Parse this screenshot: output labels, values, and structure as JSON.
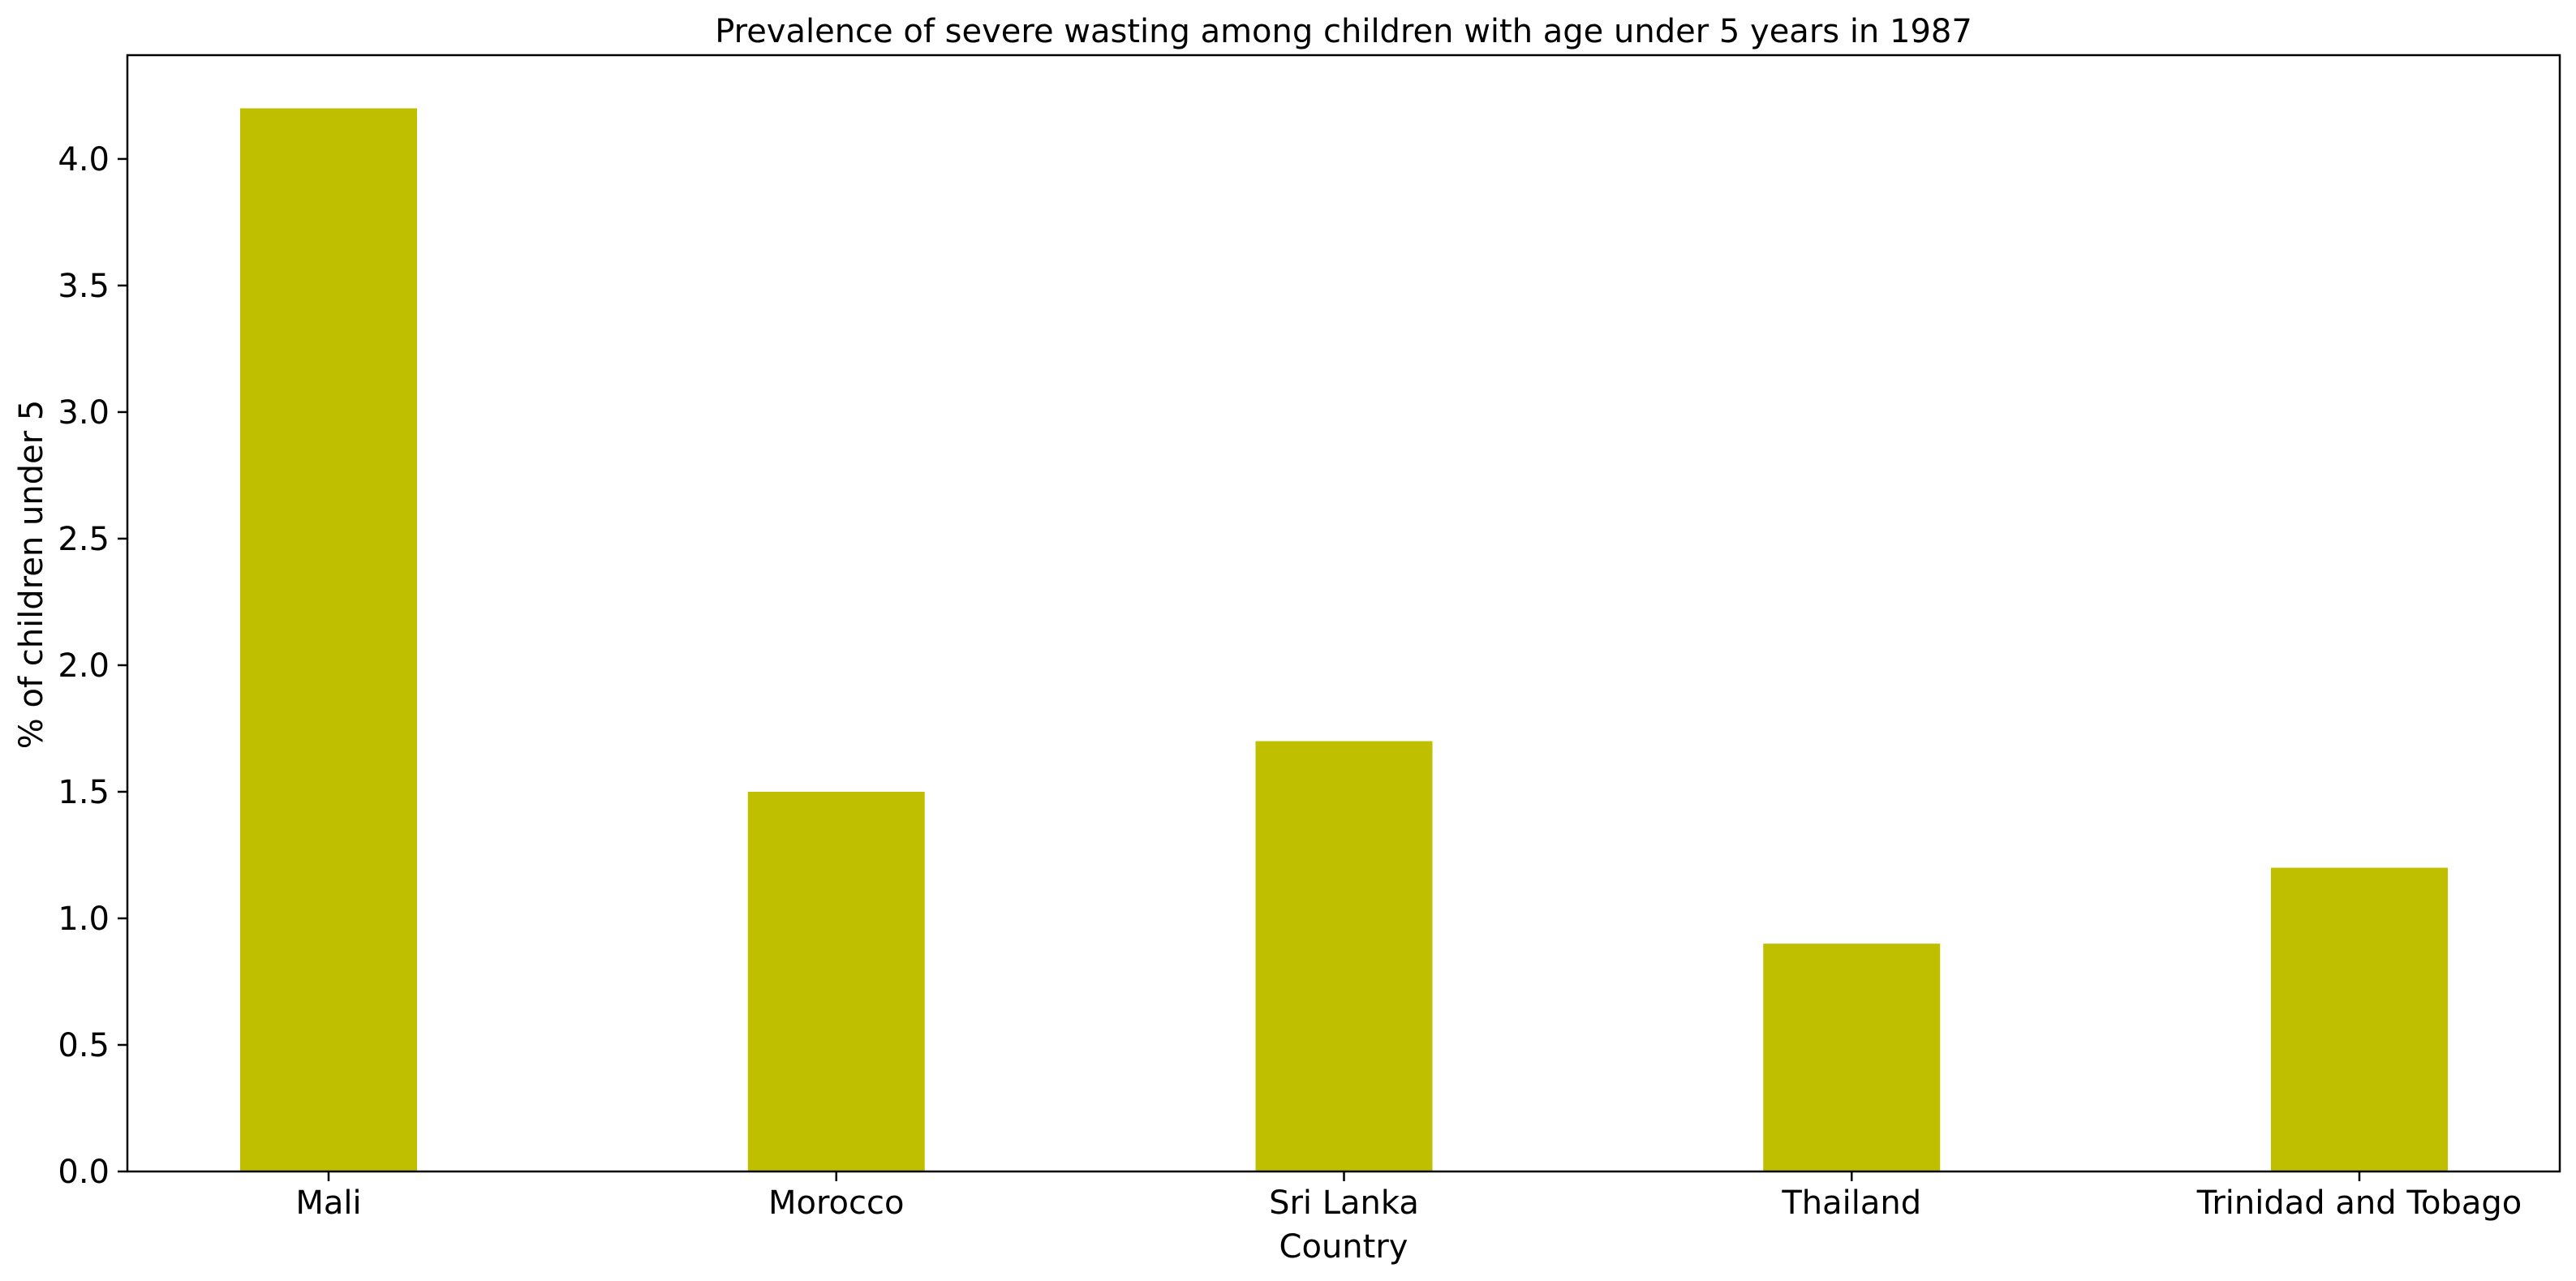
{
  "chart_data": {
    "type": "bar",
    "title": "Prevalence of severe wasting among children with age under 5 years in 1987",
    "xlabel": "Country",
    "ylabel": "% of children under 5",
    "categories": [
      "Mali",
      "Morocco",
      "Sri Lanka",
      "Thailand",
      "Trinidad and Tobago"
    ],
    "values": [
      4.2,
      1.5,
      1.7,
      0.9,
      1.2
    ],
    "ylim": [
      0,
      4.41
    ],
    "yticks": [
      0.0,
      0.5,
      1.0,
      1.5,
      2.0,
      2.5,
      3.0,
      3.5,
      4.0
    ],
    "bar_color": "#bfbf00",
    "grid": false,
    "legend": "none"
  }
}
